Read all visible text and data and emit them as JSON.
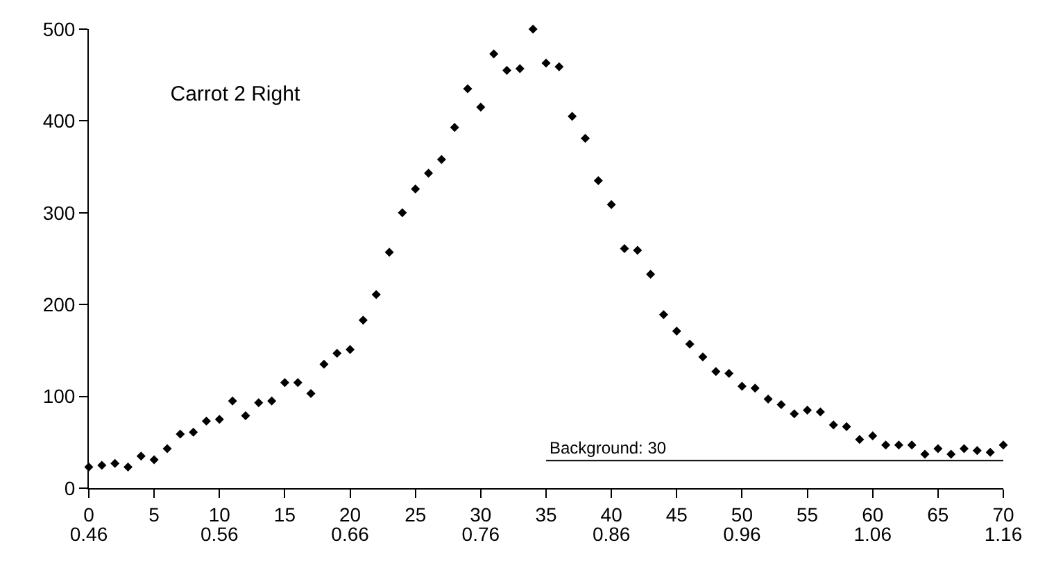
{
  "chart_data": {
    "type": "scatter",
    "title": "Carrot 2 Right",
    "x": [
      0,
      1,
      2,
      3,
      4,
      5,
      6,
      7,
      8,
      9,
      10,
      11,
      12,
      13,
      14,
      15,
      16,
      17,
      18,
      19,
      20,
      21,
      22,
      23,
      24,
      25,
      26,
      27,
      28,
      29,
      30,
      31,
      32,
      33,
      34,
      35,
      36,
      37,
      38,
      39,
      40,
      41,
      42,
      43,
      44,
      45,
      46,
      47,
      48,
      49,
      50,
      51,
      52,
      53,
      54,
      55,
      56,
      57,
      58,
      59,
      60,
      61,
      62,
      63,
      64,
      65,
      66,
      67,
      68,
      69,
      70
    ],
    "series": [
      {
        "color": "#000000",
        "values": [
          23,
          25,
          27,
          23,
          35,
          31,
          43,
          59,
          61,
          73,
          75,
          95,
          79,
          93,
          95,
          115,
          115,
          103,
          135,
          147,
          151,
          183,
          211,
          257,
          300,
          326,
          343,
          358,
          393,
          435,
          415,
          473,
          455,
          457,
          500,
          463,
          459,
          405,
          381,
          335,
          309,
          261,
          259,
          233,
          189,
          171,
          157,
          143,
          127,
          125,
          111,
          109,
          97,
          91,
          81,
          85,
          83,
          69,
          67,
          53,
          57,
          47,
          47,
          47,
          37,
          43,
          37,
          43,
          41,
          39,
          47
        ]
      }
    ],
    "marker": "diamond",
    "xlim": [
      0,
      70
    ],
    "xticks": [
      0,
      5,
      10,
      15,
      20,
      25,
      30,
      35,
      40,
      45,
      50,
      55,
      60,
      65,
      70
    ],
    "x2lim": [
      0.46,
      1.16
    ],
    "x2ticks": [
      0.46,
      0.56,
      0.66,
      0.76,
      0.86,
      0.96,
      1.06,
      1.16
    ],
    "ylim": [
      0,
      500
    ],
    "yticks": [
      0,
      100,
      200,
      300,
      400,
      500
    ],
    "ref_lines": [
      {
        "axis": "y",
        "value": 30,
        "label": "Background: 30",
        "color": "#000000",
        "line_style": "solid"
      }
    ]
  }
}
